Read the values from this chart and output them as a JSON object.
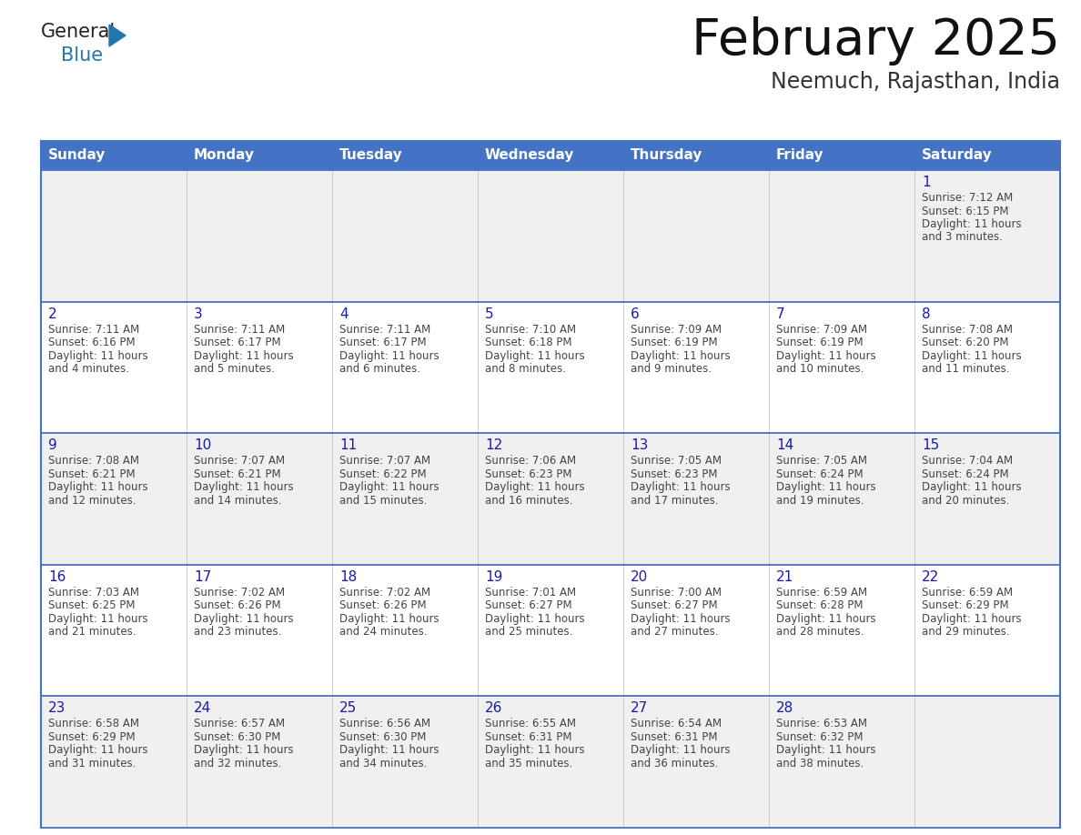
{
  "title": "February 2025",
  "subtitle": "Neemuch, Rajasthan, India",
  "days_of_week": [
    "Sunday",
    "Monday",
    "Tuesday",
    "Wednesday",
    "Thursday",
    "Friday",
    "Saturday"
  ],
  "header_bg": "#4472C4",
  "header_text": "#FFFFFF",
  "cell_bg_odd": "#F0F0F0",
  "cell_bg_even": "#FFFFFF",
  "day_num_color": "#1a1aaa",
  "text_color": "#444444",
  "calendar_data": [
    [
      null,
      null,
      null,
      null,
      null,
      null,
      {
        "day": 1,
        "sunrise": "7:12 AM",
        "sunset": "6:15 PM",
        "daylight_line1": "11 hours",
        "daylight_line2": "and 3 minutes."
      }
    ],
    [
      {
        "day": 2,
        "sunrise": "7:11 AM",
        "sunset": "6:16 PM",
        "daylight_line1": "11 hours",
        "daylight_line2": "and 4 minutes."
      },
      {
        "day": 3,
        "sunrise": "7:11 AM",
        "sunset": "6:17 PM",
        "daylight_line1": "11 hours",
        "daylight_line2": "and 5 minutes."
      },
      {
        "day": 4,
        "sunrise": "7:11 AM",
        "sunset": "6:17 PM",
        "daylight_line1": "11 hours",
        "daylight_line2": "and 6 minutes."
      },
      {
        "day": 5,
        "sunrise": "7:10 AM",
        "sunset": "6:18 PM",
        "daylight_line1": "11 hours",
        "daylight_line2": "and 8 minutes."
      },
      {
        "day": 6,
        "sunrise": "7:09 AM",
        "sunset": "6:19 PM",
        "daylight_line1": "11 hours",
        "daylight_line2": "and 9 minutes."
      },
      {
        "day": 7,
        "sunrise": "7:09 AM",
        "sunset": "6:19 PM",
        "daylight_line1": "11 hours",
        "daylight_line2": "and 10 minutes."
      },
      {
        "day": 8,
        "sunrise": "7:08 AM",
        "sunset": "6:20 PM",
        "daylight_line1": "11 hours",
        "daylight_line2": "and 11 minutes."
      }
    ],
    [
      {
        "day": 9,
        "sunrise": "7:08 AM",
        "sunset": "6:21 PM",
        "daylight_line1": "11 hours",
        "daylight_line2": "and 12 minutes."
      },
      {
        "day": 10,
        "sunrise": "7:07 AM",
        "sunset": "6:21 PM",
        "daylight_line1": "11 hours",
        "daylight_line2": "and 14 minutes."
      },
      {
        "day": 11,
        "sunrise": "7:07 AM",
        "sunset": "6:22 PM",
        "daylight_line1": "11 hours",
        "daylight_line2": "and 15 minutes."
      },
      {
        "day": 12,
        "sunrise": "7:06 AM",
        "sunset": "6:23 PM",
        "daylight_line1": "11 hours",
        "daylight_line2": "and 16 minutes."
      },
      {
        "day": 13,
        "sunrise": "7:05 AM",
        "sunset": "6:23 PM",
        "daylight_line1": "11 hours",
        "daylight_line2": "and 17 minutes."
      },
      {
        "day": 14,
        "sunrise": "7:05 AM",
        "sunset": "6:24 PM",
        "daylight_line1": "11 hours",
        "daylight_line2": "and 19 minutes."
      },
      {
        "day": 15,
        "sunrise": "7:04 AM",
        "sunset": "6:24 PM",
        "daylight_line1": "11 hours",
        "daylight_line2": "and 20 minutes."
      }
    ],
    [
      {
        "day": 16,
        "sunrise": "7:03 AM",
        "sunset": "6:25 PM",
        "daylight_line1": "11 hours",
        "daylight_line2": "and 21 minutes."
      },
      {
        "day": 17,
        "sunrise": "7:02 AM",
        "sunset": "6:26 PM",
        "daylight_line1": "11 hours",
        "daylight_line2": "and 23 minutes."
      },
      {
        "day": 18,
        "sunrise": "7:02 AM",
        "sunset": "6:26 PM",
        "daylight_line1": "11 hours",
        "daylight_line2": "and 24 minutes."
      },
      {
        "day": 19,
        "sunrise": "7:01 AM",
        "sunset": "6:27 PM",
        "daylight_line1": "11 hours",
        "daylight_line2": "and 25 minutes."
      },
      {
        "day": 20,
        "sunrise": "7:00 AM",
        "sunset": "6:27 PM",
        "daylight_line1": "11 hours",
        "daylight_line2": "and 27 minutes."
      },
      {
        "day": 21,
        "sunrise": "6:59 AM",
        "sunset": "6:28 PM",
        "daylight_line1": "11 hours",
        "daylight_line2": "and 28 minutes."
      },
      {
        "day": 22,
        "sunrise": "6:59 AM",
        "sunset": "6:29 PM",
        "daylight_line1": "11 hours",
        "daylight_line2": "and 29 minutes."
      }
    ],
    [
      {
        "day": 23,
        "sunrise": "6:58 AM",
        "sunset": "6:29 PM",
        "daylight_line1": "11 hours",
        "daylight_line2": "and 31 minutes."
      },
      {
        "day": 24,
        "sunrise": "6:57 AM",
        "sunset": "6:30 PM",
        "daylight_line1": "11 hours",
        "daylight_line2": "and 32 minutes."
      },
      {
        "day": 25,
        "sunrise": "6:56 AM",
        "sunset": "6:30 PM",
        "daylight_line1": "11 hours",
        "daylight_line2": "and 34 minutes."
      },
      {
        "day": 26,
        "sunrise": "6:55 AM",
        "sunset": "6:31 PM",
        "daylight_line1": "11 hours",
        "daylight_line2": "and 35 minutes."
      },
      {
        "day": 27,
        "sunrise": "6:54 AM",
        "sunset": "6:31 PM",
        "daylight_line1": "11 hours",
        "daylight_line2": "and 36 minutes."
      },
      {
        "day": 28,
        "sunrise": "6:53 AM",
        "sunset": "6:32 PM",
        "daylight_line1": "11 hours",
        "daylight_line2": "and 38 minutes."
      },
      null
    ]
  ],
  "logo_text_general": "General",
  "logo_text_blue": "Blue",
  "logo_black": "#222222",
  "logo_blue": "#2176ae"
}
